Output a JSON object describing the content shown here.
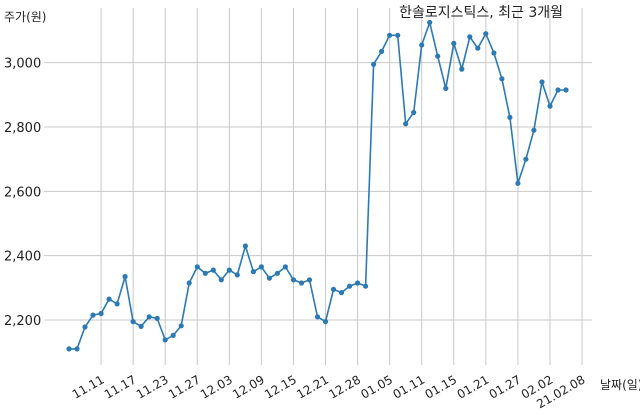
{
  "chart_data": {
    "type": "line",
    "title": "한솔로지스틱스, 최근 3개월",
    "ylabel": "주가(원)",
    "xlabel": "날짜(일)",
    "ylim": [
      2060,
      3170
    ],
    "yticks": [
      2200,
      2400,
      2600,
      2800,
      3000
    ],
    "ytick_labels": [
      "2,200",
      "2,400",
      "2,600",
      "2,800",
      "3,000"
    ],
    "xtick_labels": [
      "11.11",
      "11.17",
      "11.23",
      "11.27",
      "12.03",
      "12.09",
      "12.15",
      "12.21",
      "12.28",
      "01.05",
      "01.11",
      "01.15",
      "01.21",
      "01.27",
      "02.02",
      "21.02.08"
    ],
    "xtick_positions": [
      4,
      8,
      12,
      16,
      20,
      24,
      28,
      32,
      36,
      40,
      44,
      48,
      52,
      56,
      60,
      64
    ],
    "grid": "vertical and horizontal",
    "color": "#2a7ab5",
    "series": [
      {
        "values": [
          2110,
          2110,
          2178,
          2215,
          2220,
          2265,
          2250,
          2335,
          2195,
          2180,
          2210,
          2205,
          2138,
          2152,
          2182,
          2315,
          2365,
          2345,
          2355,
          2325,
          2355,
          2340,
          2430,
          2350,
          2365,
          2330,
          2345,
          2365,
          2325,
          2315,
          2325,
          2210,
          2195,
          2295,
          2285,
          2305,
          2315,
          2305,
          2995,
          3035,
          3085,
          3085,
          2810,
          2845,
          3055,
          3125,
          3020,
          2920,
          3060,
          2980,
          3080,
          3045,
          3090,
          3030,
          2950,
          2830,
          2625,
          2700,
          2790,
          2940,
          2865,
          2915,
          2915
        ]
      }
    ]
  }
}
